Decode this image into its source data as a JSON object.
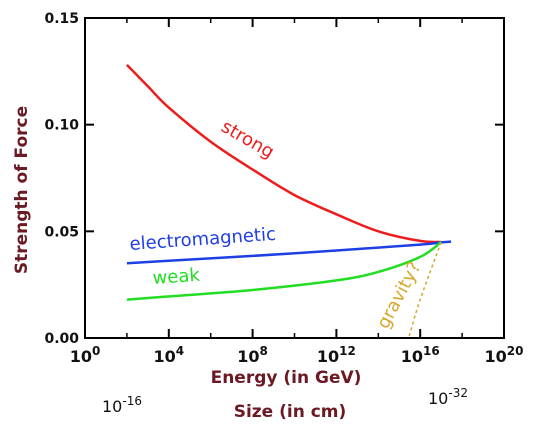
{
  "chart_data": {
    "type": "line",
    "xlabel": "Energy (in GeV)",
    "ylabel": "Strength of Force",
    "x_scale": "log",
    "xlim": [
      1,
      1e+20
    ],
    "ylim": [
      0,
      0.15
    ],
    "grid": false,
    "y_ticks": [
      "0.00",
      "0.05",
      "0.10",
      "0.15"
    ],
    "x_ticks": [
      {
        "base": "10",
        "exp": "0"
      },
      {
        "base": "10",
        "exp": "4"
      },
      {
        "base": "10",
        "exp": "8"
      },
      {
        "base": "10",
        "exp": "12"
      },
      {
        "base": "10",
        "exp": "16"
      },
      {
        "base": "10",
        "exp": "20"
      }
    ],
    "secondary_axis": {
      "label": "Size (in cm)",
      "left": {
        "base": "10",
        "exp": "-16"
      },
      "right": {
        "base": "10",
        "exp": "-32"
      }
    },
    "series": [
      {
        "name": "strong",
        "color": "#ee1c1c",
        "x": [
          100,
          1000,
          10000.0,
          1000000.0,
          100000000.0,
          10000000000.0,
          1000000000000.0,
          100000000000000.0,
          1e+16,
          1e+17
        ],
        "y": [
          0.128,
          0.118,
          0.108,
          0.092,
          0.079,
          0.067,
          0.058,
          0.05,
          0.0455,
          0.045
        ]
      },
      {
        "name": "electromagnetic",
        "color": "#1f3fe6",
        "x": [
          100,
          10000.0,
          100000000.0,
          1000000000000.0,
          1e+16,
          1e+17,
          3e+17
        ],
        "y": [
          0.035,
          0.0362,
          0.0385,
          0.041,
          0.0438,
          0.0448,
          0.0452
        ]
      },
      {
        "name": "weak",
        "color": "#22dd22",
        "x": [
          100,
          10000.0,
          100000000.0,
          1000000000000.0,
          100000000000000.0,
          1e+16,
          1e+17
        ],
        "y": [
          0.018,
          0.0195,
          0.0225,
          0.027,
          0.031,
          0.038,
          0.045
        ]
      },
      {
        "name": "gravity?",
        "color": "#d4a82c",
        "dashed": true,
        "x": [
          3000000000000000.0,
          1e+16,
          1e+17
        ],
        "y": [
          0.001,
          0.018,
          0.045
        ]
      }
    ]
  }
}
